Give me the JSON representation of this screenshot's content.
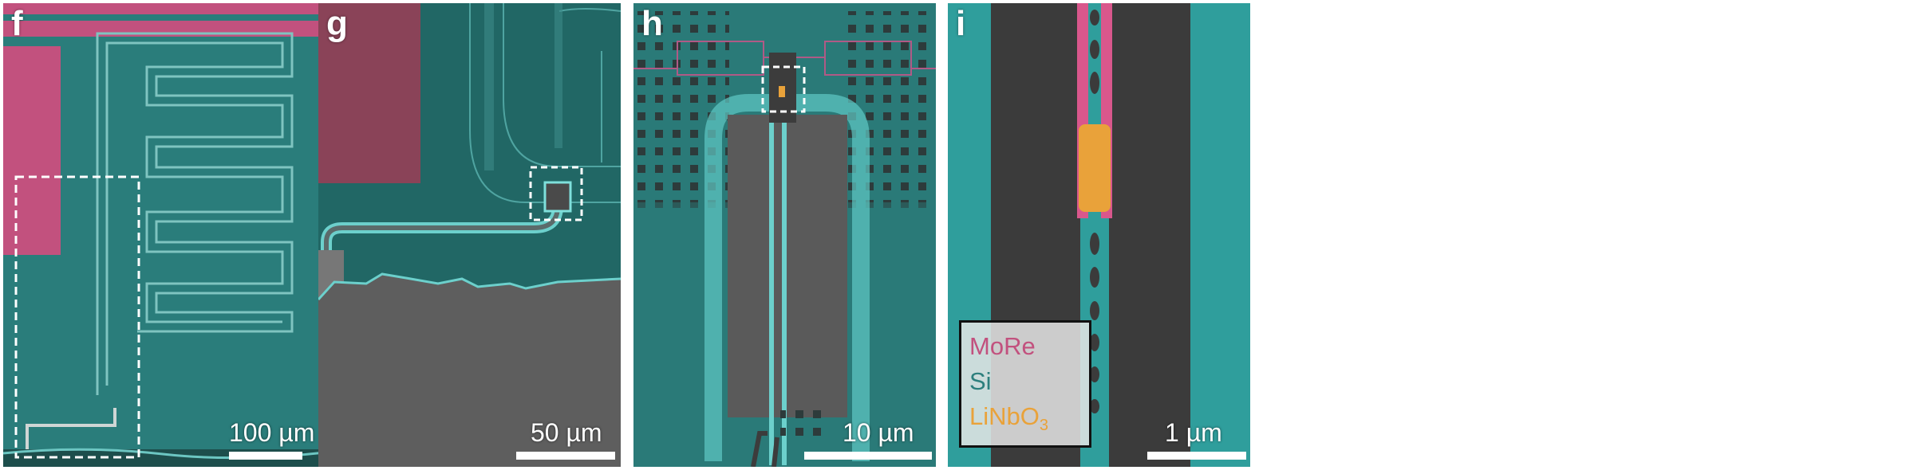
{
  "colors": {
    "substrate": "#1f6663",
    "silicon": "#2ea7a5",
    "more": "#c2517e",
    "linbo3": "#e9a23a",
    "gap": "#3b3b3b",
    "dashed_box": "#ffffff"
  },
  "panels": [
    {
      "letter": "f",
      "scale_label": "100 µm"
    },
    {
      "letter": "g",
      "scale_label": "50 µm"
    },
    {
      "letter": "h",
      "scale_label": "10 µm"
    },
    {
      "letter": "i",
      "scale_label": "1 µm"
    }
  ],
  "legend": {
    "items": [
      {
        "label": "MoRe",
        "color": "#c2517e"
      },
      {
        "label": "Si",
        "color": "#2d7f7d"
      },
      {
        "label_main": "LiNbO",
        "label_sub": "3",
        "color": "#e9a23a"
      }
    ]
  }
}
